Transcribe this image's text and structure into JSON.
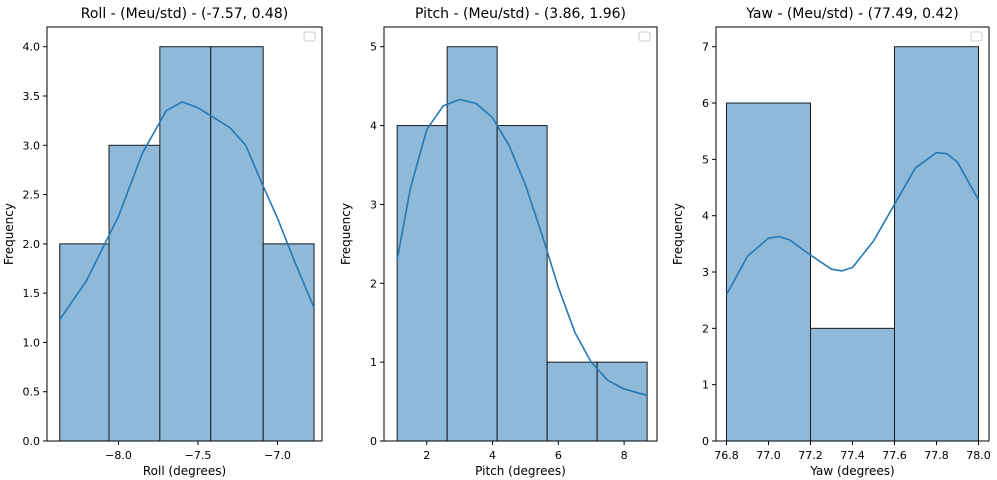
{
  "chart_data": [
    {
      "type": "bar",
      "subtype": "histogram_with_kde",
      "title": "Roll - (Meu/std) - (-7.57, 0.48)",
      "xlabel": "Roll (degrees)",
      "ylabel": "Frequency",
      "xlim": [
        -8.45,
        -6.72
      ],
      "ylim": [
        0,
        4.2
      ],
      "xticks": [
        -8.0,
        -7.5,
        -7.0
      ],
      "xtick_labels": [
        "−8.0",
        "−7.5",
        "−7.0"
      ],
      "yticks": [
        0.0,
        0.5,
        1.0,
        1.5,
        2.0,
        2.5,
        3.0,
        3.5,
        4.0
      ],
      "ytick_labels": [
        "0.0",
        "0.5",
        "1.0",
        "1.5",
        "2.0",
        "2.5",
        "3.0",
        "3.5",
        "4.0"
      ],
      "bin_edges": [
        -8.37,
        -8.06,
        -7.74,
        -7.42,
        -7.09,
        -6.77
      ],
      "values": [
        2,
        3,
        4,
        4,
        2
      ],
      "kde": {
        "x": [
          -8.37,
          -8.2,
          -8.0,
          -7.85,
          -7.7,
          -7.6,
          -7.5,
          -7.4,
          -7.3,
          -7.2,
          -7.1,
          -7.0,
          -6.9,
          -6.77
        ],
        "y": [
          1.23,
          1.63,
          2.28,
          2.92,
          3.35,
          3.44,
          3.38,
          3.28,
          3.18,
          3.0,
          2.62,
          2.26,
          1.85,
          1.35
        ]
      },
      "bar_color": "#8fb9d9",
      "line_color": "#2678b4",
      "legend": "top-right (empty)"
    },
    {
      "type": "bar",
      "subtype": "histogram_with_kde",
      "title": "Pitch - (Meu/std) - (3.86, 1.96)",
      "xlabel": "Pitch (degrees)",
      "ylabel": "Frequency",
      "xlim": [
        0.7,
        9.0
      ],
      "ylim": [
        0,
        5.25
      ],
      "xticks": [
        2,
        4,
        6,
        8
      ],
      "xtick_labels": [
        "2",
        "4",
        "6",
        "8"
      ],
      "yticks": [
        0,
        1,
        2,
        3,
        4,
        5
      ],
      "ytick_labels": [
        "0",
        "1",
        "2",
        "3",
        "4",
        "5"
      ],
      "bin_edges": [
        1.1,
        2.62,
        4.14,
        5.66,
        7.18,
        8.7
      ],
      "values": [
        4,
        5,
        4,
        1,
        1
      ],
      "kde": {
        "x": [
          1.1,
          1.5,
          2.0,
          2.5,
          3.0,
          3.5,
          4.0,
          4.5,
          5.0,
          5.5,
          6.0,
          6.5,
          7.0,
          7.5,
          8.0,
          8.7
        ],
        "y": [
          2.3,
          3.2,
          3.95,
          4.25,
          4.33,
          4.28,
          4.1,
          3.75,
          3.25,
          2.62,
          1.95,
          1.38,
          1.0,
          0.77,
          0.66,
          0.58
        ]
      },
      "bar_color": "#8fb9d9",
      "line_color": "#2678b4",
      "legend": "top-right (empty)"
    },
    {
      "type": "bar",
      "subtype": "histogram_with_kde",
      "title": "Yaw - (Meu/std) - (77.49, 0.42)",
      "xlabel": "Yaw (degrees)",
      "ylabel": "Frequency",
      "xlim": [
        76.75,
        78.05
      ],
      "ylim": [
        0,
        7.35
      ],
      "xticks": [
        76.8,
        77.0,
        77.2,
        77.4,
        77.6,
        77.8,
        78.0
      ],
      "xtick_labels": [
        "76.8",
        "77.0",
        "77.2",
        "77.4",
        "77.6",
        "77.8",
        "78.0"
      ],
      "yticks": [
        0,
        1,
        2,
        3,
        4,
        5,
        6,
        7
      ],
      "ytick_labels": [
        "0",
        "1",
        "2",
        "3",
        "4",
        "5",
        "6",
        "7"
      ],
      "bin_edges": [
        76.8,
        77.2,
        77.6,
        78.0
      ],
      "values": [
        6,
        2,
        7
      ],
      "kde": {
        "x": [
          76.8,
          76.9,
          77.0,
          77.05,
          77.1,
          77.2,
          77.3,
          77.35,
          77.4,
          77.5,
          77.6,
          77.7,
          77.8,
          77.85,
          77.9,
          78.0
        ],
        "y": [
          2.6,
          3.28,
          3.6,
          3.63,
          3.57,
          3.3,
          3.05,
          3.02,
          3.08,
          3.55,
          4.2,
          4.85,
          5.12,
          5.1,
          4.95,
          4.28
        ]
      },
      "bar_color": "#8fb9d9",
      "line_color": "#2678b4",
      "legend": "top-right (empty)"
    }
  ]
}
